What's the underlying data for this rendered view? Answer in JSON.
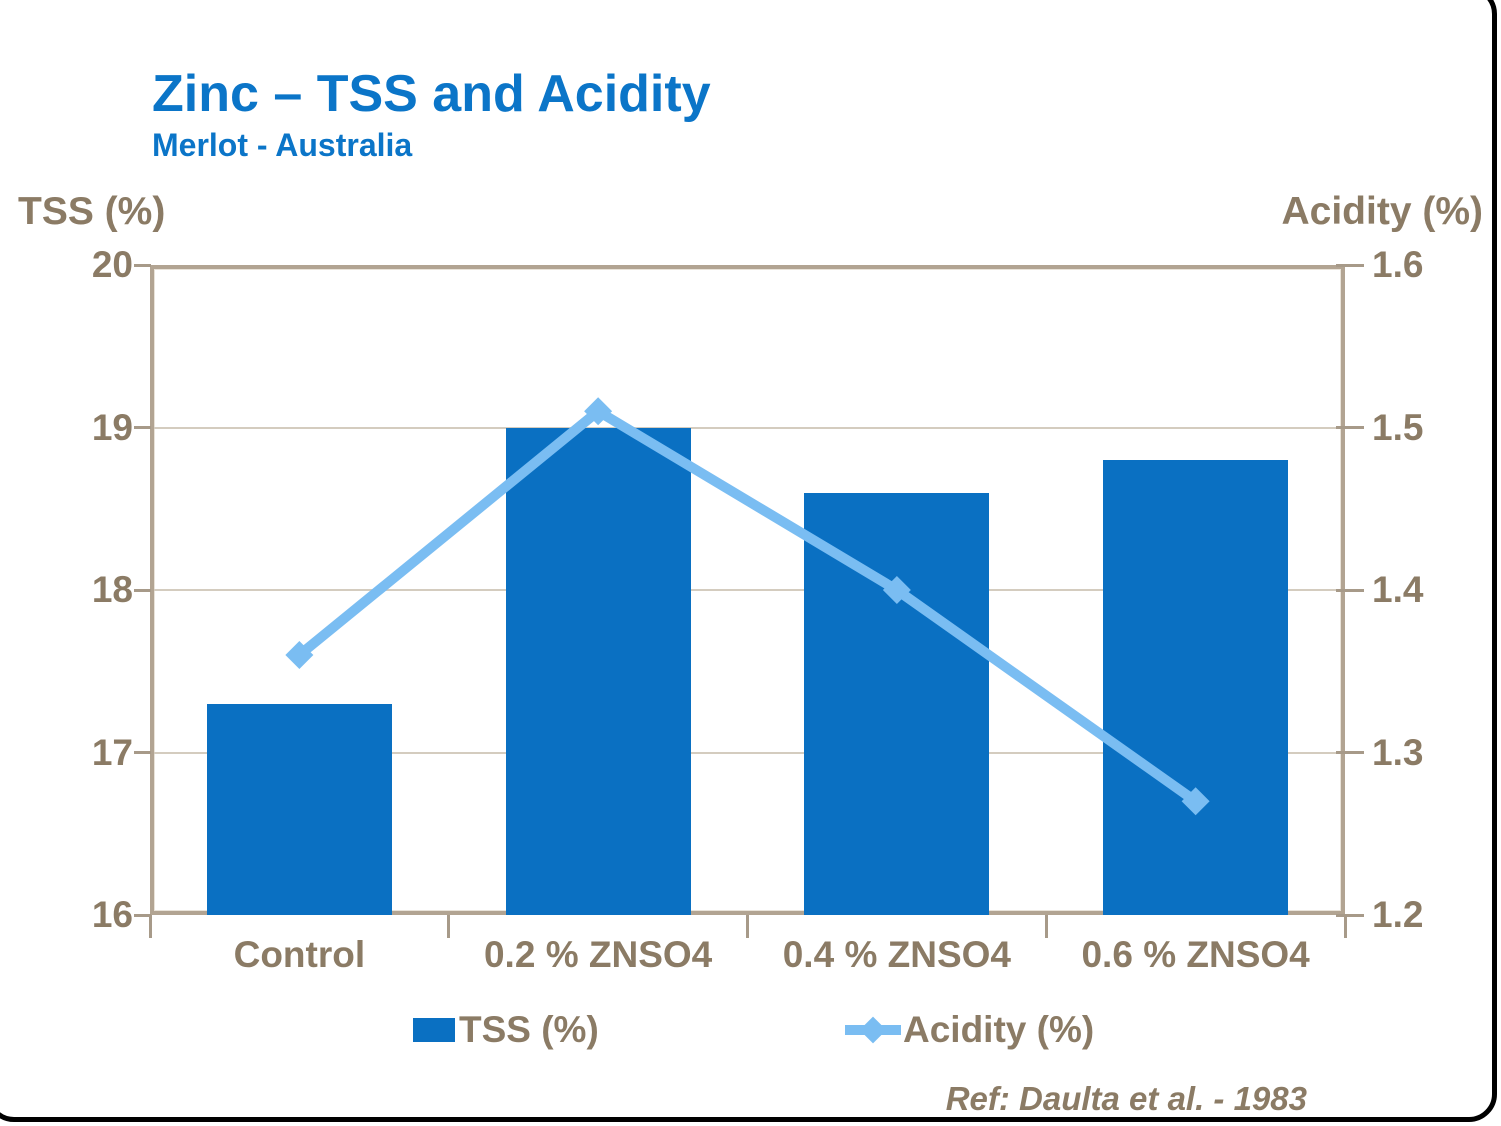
{
  "slide": {
    "title": "Zinc – TSS and Acidity",
    "subtitle": "Merlot - Australia",
    "reference": "Ref: Daulta et al. - 1983"
  },
  "legend": {
    "items": [
      {
        "label": "TSS (%)",
        "swatch": "bar-square"
      },
      {
        "label": "Acidity (%)",
        "swatch": "line-diamond"
      }
    ]
  },
  "colors": {
    "bar_blue": "#0a70c2",
    "line_blue": "#7abdf2",
    "title_blue": "#0b75c8",
    "text_brown": "#8b7b65",
    "axis_tan": "#b2a492",
    "gridline": "#d4ccbf",
    "tick": "#a79a89",
    "frame_black": "#000000"
  },
  "chart_data": {
    "type": "bar",
    "title": "Zinc – TSS and Acidity",
    "subtitle": "Merlot - Australia",
    "categories": [
      "Control",
      "0.2 % ZNSO4",
      "0.4 % ZNSO4",
      "0.6 % ZNSO4"
    ],
    "series": [
      {
        "name": "TSS (%)",
        "type": "bar",
        "axis": "left",
        "values": [
          17.3,
          19.0,
          18.6,
          18.8
        ]
      },
      {
        "name": "Acidity (%)",
        "type": "line",
        "axis": "right",
        "values": [
          1.36,
          1.51,
          1.4,
          1.27
        ]
      }
    ],
    "left_axis": {
      "label": "TSS (%)",
      "min": 16,
      "max": 20,
      "tick_labels": [
        "20",
        "19",
        "18",
        "17",
        "16"
      ]
    },
    "right_axis": {
      "label": "Acidity (%)",
      "min": 1.2,
      "max": 1.6,
      "tick_labels": [
        "1.6",
        "1.5",
        "1.4",
        "1.3",
        "1.2"
      ]
    },
    "grid": true,
    "legend_position": "bottom",
    "annotation": "Ref: Daulta et al. - 1983"
  }
}
